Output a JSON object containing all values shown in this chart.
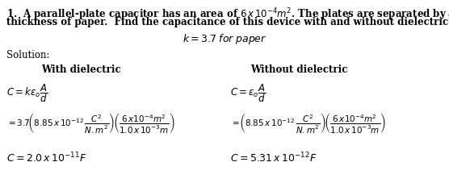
{
  "bg_color": "#ffffff",
  "fig_width": 5.56,
  "fig_height": 2.28,
  "dpi": 100,
  "font_size_question": 8.5,
  "font_size_k": 9.0,
  "font_size_solution": 8.5,
  "font_size_labels": 8.5,
  "font_size_eq1": 8.5,
  "font_size_eq2": 7.5,
  "font_size_result": 9.0
}
